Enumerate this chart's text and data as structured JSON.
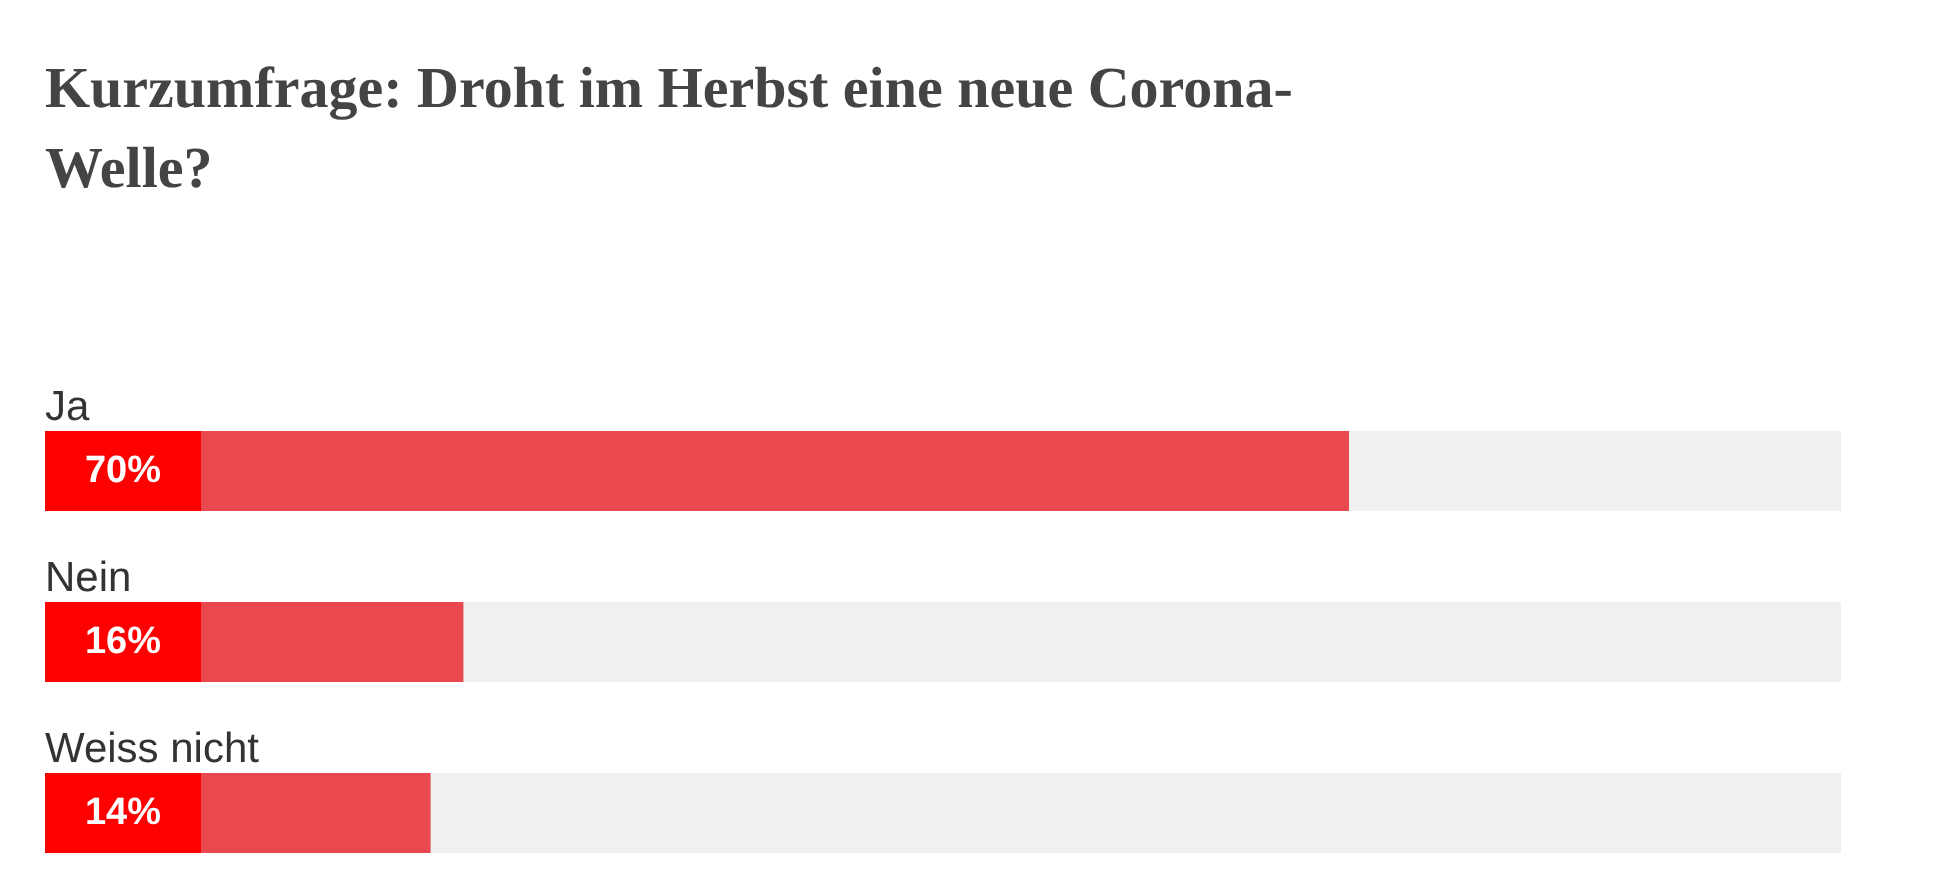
{
  "chart_data": {
    "type": "bar",
    "orientation": "horizontal",
    "title": "Kurzumfrage: Droht im Herbst eine neue Corona-Welle?",
    "categories": [
      "Ja",
      "Nein",
      "Weiss nicht"
    ],
    "values": [
      70,
      16,
      14
    ],
    "value_labels": [
      "70%",
      "16%",
      "14%"
    ],
    "color": "#e9484f",
    "xlim": [
      0,
      100
    ],
    "grid": false
  }
}
